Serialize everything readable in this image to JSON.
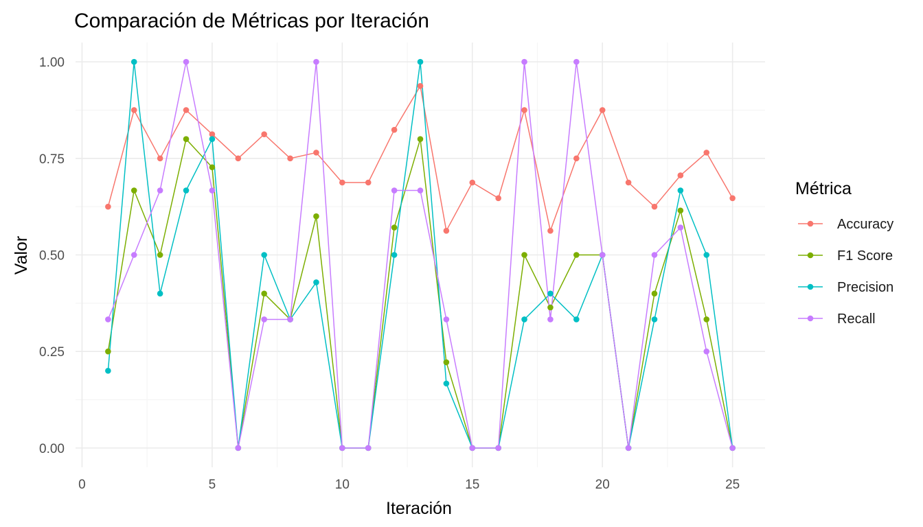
{
  "chart_data": {
    "type": "line",
    "title": "Comparación de Métricas por Iteración",
    "xlabel": "Iteración",
    "ylabel": "Valor",
    "xlim": [
      -0.25,
      26.25
    ],
    "ylim": [
      -0.05,
      1.05
    ],
    "x_ticks": [
      0,
      5,
      10,
      15,
      20,
      25
    ],
    "y_ticks": [
      0,
      0.25,
      0.5,
      0.75,
      1
    ],
    "x_tick_labels": [
      "0",
      "5",
      "10",
      "15",
      "20",
      "25"
    ],
    "y_tick_labels": [
      "0.00",
      "0.25",
      "0.50",
      "0.75",
      "1.00"
    ],
    "grid": true,
    "legend": {
      "title": "Métrica",
      "position": "right"
    },
    "x": [
      1,
      2,
      3,
      4,
      5,
      6,
      7,
      8,
      9,
      10,
      11,
      12,
      13,
      14,
      15,
      16,
      17,
      18,
      19,
      20,
      21,
      22,
      23,
      24,
      25
    ],
    "series": [
      {
        "name": "Accuracy",
        "color": "#F8766D",
        "values": [
          0.625,
          0.875,
          0.75,
          0.875,
          0.8125,
          0.75,
          0.8125,
          0.75,
          0.765,
          0.6875,
          0.6875,
          0.824,
          0.9375,
          0.5625,
          0.6875,
          0.647,
          0.875,
          0.5625,
          0.75,
          0.875,
          0.6875,
          0.625,
          0.706,
          0.765,
          0.647
        ]
      },
      {
        "name": "F1 Score",
        "color": "#7CAE00",
        "values": [
          0.25,
          0.667,
          0.5,
          0.8,
          0.727,
          0,
          0.4,
          0.333,
          0.6,
          0,
          0,
          0.571,
          0.8,
          0.222,
          0,
          0,
          0.5,
          0.364,
          0.5,
          0.5,
          0,
          0.4,
          0.615,
          0.333,
          0
        ]
      },
      {
        "name": "Precision",
        "color": "#00BFC4",
        "values": [
          0.2,
          1,
          0.4,
          0.667,
          0.8,
          0,
          0.5,
          0.333,
          0.429,
          0,
          0,
          0.5,
          1,
          0.167,
          0,
          0,
          0.333,
          0.4,
          0.333,
          0.5,
          0,
          0.333,
          0.667,
          0.5,
          0
        ]
      },
      {
        "name": "Recall",
        "color": "#C77CFF",
        "values": [
          0.333,
          0.5,
          0.667,
          1,
          0.667,
          0,
          0.333,
          0.333,
          1,
          0,
          0,
          0.667,
          0.667,
          0.333,
          0,
          0,
          1,
          0.333,
          1,
          0.5,
          0,
          0.5,
          0.571,
          0.25,
          0
        ]
      }
    ]
  }
}
